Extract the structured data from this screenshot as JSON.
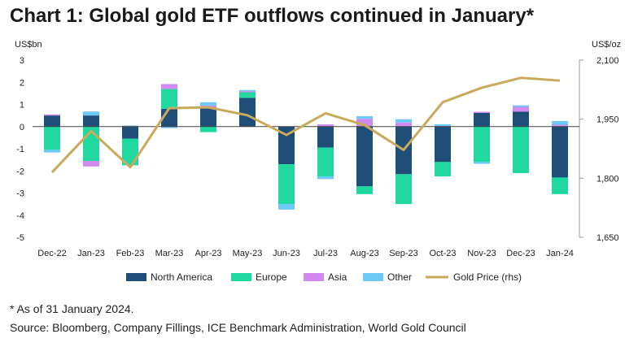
{
  "chart_data": {
    "type": "bar",
    "title": "Chart 1: Global gold ETF outflows continued in January*",
    "ylabel_left": "US$bn",
    "ylabel_right": "US$/oz",
    "ylim": [
      -5,
      3
    ],
    "y2lim": [
      1650,
      2100
    ],
    "yticks": [
      3,
      2,
      1,
      0,
      -1,
      -2,
      -3,
      -4,
      -5
    ],
    "y2ticks": [
      "2,100",
      "1,950",
      "1,800",
      "1,650"
    ],
    "y2tick_values": [
      2100,
      1950,
      1800,
      1650
    ],
    "categories": [
      "Dec-22",
      "Jan-23",
      "Feb-23",
      "Mar-23",
      "Apr-23",
      "May-23",
      "Jun-23",
      "Jul-23",
      "Aug-23",
      "Sep-23",
      "Oct-23",
      "Nov-23",
      "Dec-23",
      "Jan-24"
    ],
    "series": [
      {
        "name": "North America",
        "color": "#1f4e79",
        "values": [
          0.5,
          0.5,
          -0.55,
          0.8,
          0.85,
          1.3,
          -1.7,
          -0.95,
          -2.7,
          -2.15,
          -1.6,
          0.62,
          0.67,
          -2.3
        ]
      },
      {
        "name": "Europe",
        "color": "#1fd9a0",
        "values": [
          -1.05,
          -1.55,
          -1.2,
          0.9,
          -0.25,
          0.25,
          -1.8,
          -1.3,
          -0.35,
          -1.35,
          -0.65,
          -1.6,
          -2.1,
          -0.75
        ]
      },
      {
        "name": "Asia",
        "color": "#d08af0",
        "values": [
          0.05,
          -0.25,
          0.02,
          0.22,
          0.1,
          0.05,
          0.0,
          0.1,
          0.35,
          0.18,
          0.03,
          0.05,
          0.22,
          0.08
        ]
      },
      {
        "name": "Other",
        "color": "#6cc8f7",
        "values": [
          -0.12,
          0.18,
          0.03,
          -0.07,
          0.15,
          0.05,
          -0.25,
          -0.12,
          0.12,
          0.15,
          0.07,
          -0.08,
          0.07,
          0.17
        ]
      }
    ],
    "line": {
      "name": "Gold Price (rhs)",
      "color": "#c9aa5a",
      "values": [
        1815,
        1920,
        1828,
        1978,
        1980,
        1960,
        1910,
        1965,
        1935,
        1872,
        1993,
        2030,
        2055,
        2048
      ]
    },
    "legend": [
      "North America",
      "Europe",
      "Asia",
      "Other",
      "Gold Price (rhs)"
    ]
  },
  "footnotes": {
    "note": "* As of 31 January 2024.",
    "source": "Source: Bloomberg, Company Fillings, ICE Benchmark Administration, World Gold Council"
  }
}
